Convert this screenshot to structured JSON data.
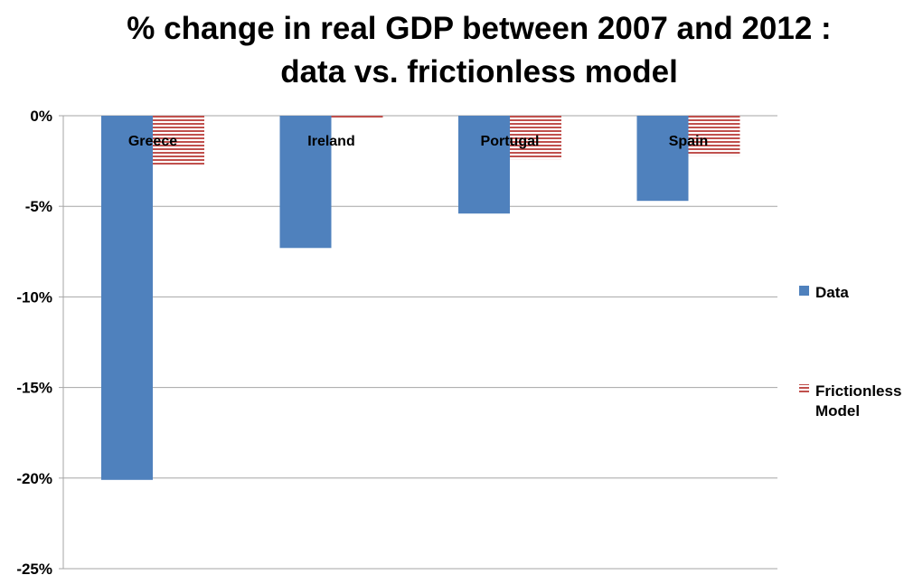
{
  "chart_data": {
    "type": "bar",
    "title_lines": [
      "% change in real GDP between 2007 and 2012 :",
      "data vs. frictionless model"
    ],
    "categories": [
      "Greece",
      "Ireland",
      "Portugal",
      "Spain"
    ],
    "series": [
      {
        "name": "Data",
        "values": [
          -20.1,
          -7.3,
          -5.4,
          -4.7
        ],
        "color": "#4F81BD",
        "pattern": "solid"
      },
      {
        "name": "Frictionless Model",
        "legend_lines": [
          "Frictionless",
          "Model"
        ],
        "values": [
          -2.7,
          -0.2,
          -2.4,
          -2.2
        ],
        "color": "#C0504D",
        "pattern": "horizontal-stripes"
      }
    ],
    "ylim": [
      -25,
      0
    ],
    "yticks": [
      0,
      -5,
      -10,
      -15,
      -20,
      -25
    ],
    "ytick_labels": [
      "0%",
      "-5%",
      "-10%",
      "-15%",
      "-20%",
      "-25%"
    ],
    "grid": true,
    "legend_position": "right"
  }
}
